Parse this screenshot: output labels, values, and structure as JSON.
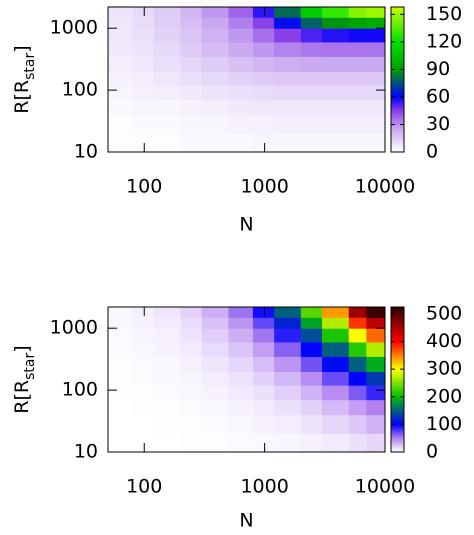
{
  "chart_data": [
    {
      "type": "heatmap",
      "xlabel": "N",
      "ylabel": {
        "text": "R[R",
        "subscript": "star",
        "suffix": "]"
      },
      "xscale": "log",
      "yscale": "log",
      "xlim": [
        50,
        10000
      ],
      "ylim": [
        10,
        2200
      ],
      "xticks": [
        100,
        1000,
        10000
      ],
      "yticks": [
        10,
        100,
        1000
      ],
      "xbins": [
        50,
        80,
        120,
        200,
        300,
        500,
        800,
        1200,
        2000,
        3000,
        5000,
        7000,
        10000
      ],
      "ybins": [
        10,
        20,
        40,
        70,
        120,
        200,
        350,
        600,
        1000,
        1500,
        2200
      ],
      "values": [
        [
          1,
          1,
          1,
          2,
          2,
          2,
          3,
          3,
          3,
          3,
          3,
          3
        ],
        [
          1,
          2,
          2,
          3,
          3,
          4,
          4,
          5,
          5,
          5,
          5,
          5
        ],
        [
          2,
          3,
          3,
          4,
          5,
          6,
          7,
          7,
          7,
          7,
          7,
          7
        ],
        [
          3,
          4,
          5,
          6,
          8,
          9,
          10,
          11,
          11,
          11,
          11,
          11
        ],
        [
          4,
          5,
          7,
          9,
          11,
          13,
          15,
          16,
          16,
          16,
          16,
          16
        ],
        [
          5,
          7,
          9,
          12,
          15,
          18,
          21,
          23,
          24,
          24,
          24,
          24
        ],
        [
          6,
          8,
          11,
          15,
          19,
          24,
          28,
          32,
          34,
          35,
          35,
          35
        ],
        [
          7,
          9,
          13,
          17,
          22,
          28,
          36,
          45,
          52,
          56,
          58,
          58
        ],
        [
          7,
          10,
          14,
          19,
          25,
          33,
          45,
          62,
          78,
          88,
          92,
          95
        ],
        [
          8,
          11,
          15,
          21,
          28,
          38,
          55,
          80,
          110,
          130,
          145,
          150
        ]
      ],
      "clim": [
        0,
        158
      ],
      "cbticks": [
        0,
        30,
        60,
        90,
        120,
        150
      ],
      "palette": [
        [
          0,
          "#ffffff"
        ],
        [
          25,
          "#c8a8f0"
        ],
        [
          45,
          "#8a40e8"
        ],
        [
          60,
          "#0000ff"
        ],
        [
          90,
          "#00a000"
        ],
        [
          120,
          "#00e000"
        ],
        [
          158,
          "#c8ff00"
        ]
      ]
    },
    {
      "type": "heatmap",
      "xlabel": "N",
      "ylabel": {
        "text": "R[R",
        "subscript": "star",
        "suffix": "]"
      },
      "xscale": "log",
      "yscale": "log",
      "xlim": [
        50,
        10000
      ],
      "ylim": [
        10,
        2200
      ],
      "xticks": [
        100,
        1000,
        10000
      ],
      "yticks": [
        10,
        100,
        1000
      ],
      "xbins": [
        50,
        80,
        120,
        200,
        300,
        500,
        800,
        1200,
        2000,
        3000,
        5000,
        7000,
        10000
      ],
      "ybins": [
        10,
        20,
        40,
        70,
        120,
        200,
        350,
        600,
        1000,
        1500,
        2200
      ],
      "values": [
        [
          0,
          0,
          0,
          1,
          1,
          2,
          3,
          4,
          6,
          8,
          12,
          16
        ],
        [
          0,
          0,
          1,
          1,
          2,
          3,
          5,
          7,
          11,
          16,
          22,
          30
        ],
        [
          0,
          1,
          1,
          2,
          3,
          5,
          8,
          12,
          18,
          27,
          38,
          50
        ],
        [
          1,
          1,
          2,
          3,
          5,
          8,
          12,
          19,
          30,
          45,
          65,
          85
        ],
        [
          1,
          2,
          3,
          4,
          7,
          11,
          18,
          28,
          45,
          70,
          100,
          130
        ],
        [
          1,
          2,
          3,
          6,
          10,
          16,
          26,
          42,
          68,
          105,
          150,
          190
        ],
        [
          2,
          3,
          5,
          8,
          14,
          23,
          38,
          62,
          100,
          150,
          215,
          270
        ],
        [
          2,
          4,
          6,
          11,
          19,
          32,
          54,
          88,
          140,
          210,
          300,
          360
        ],
        [
          3,
          5,
          8,
          14,
          25,
          42,
          72,
          118,
          185,
          270,
          380,
          440
        ],
        [
          3,
          6,
          10,
          18,
          32,
          55,
          95,
          150,
          235,
          340,
          460,
          520
        ]
      ],
      "clim": [
        0,
        525
      ],
      "cbticks": [
        0,
        100,
        200,
        300,
        400,
        500
      ],
      "palette": [
        [
          0,
          "#ffffff"
        ],
        [
          50,
          "#b080f0"
        ],
        [
          100,
          "#0000ff"
        ],
        [
          200,
          "#00c000"
        ],
        [
          300,
          "#ffff00"
        ],
        [
          400,
          "#ff0000"
        ],
        [
          525,
          "#300000"
        ]
      ]
    }
  ]
}
